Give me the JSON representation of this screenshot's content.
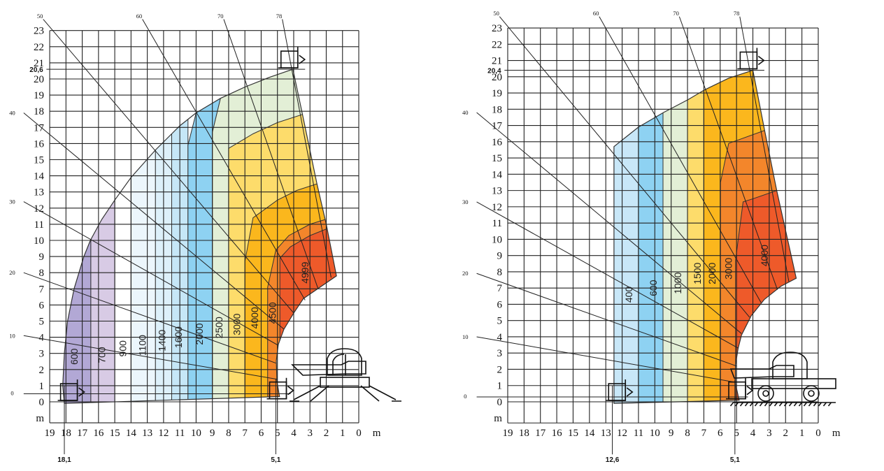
{
  "chart_data": [
    {
      "type": "area",
      "name": "load-chart-stabilized",
      "title": "",
      "xlabel": "m",
      "ylabel": "m",
      "xlim": [
        19,
        0
      ],
      "ylim": [
        0,
        23
      ],
      "x_ticks": [
        "19",
        "18",
        "17",
        "16",
        "15",
        "14",
        "13",
        "12",
        "11",
        "10",
        "9",
        "8",
        "7",
        "6",
        "5",
        "4",
        "3",
        "2",
        "1",
        "0"
      ],
      "y_ticks": [
        "0",
        "1",
        "2",
        "3",
        "4",
        "5",
        "6",
        "7",
        "8",
        "9",
        "10",
        "11",
        "12",
        "13",
        "14",
        "15",
        "16",
        "17",
        "18",
        "19",
        "20",
        "21",
        "22",
        "23"
      ],
      "grid": true,
      "max_height": {
        "value": 20.6,
        "label": "20,6"
      },
      "max_reach": {
        "value": 18.1,
        "label": "18,1"
      },
      "min_reach": {
        "value": 5.1,
        "label": "5,1"
      },
      "boom_angles": [
        "0",
        "10",
        "20",
        "30",
        "40",
        "50",
        "60",
        "70",
        "78"
      ],
      "envelope": [
        [
          18.1,
          -0.1
        ],
        [
          18.2,
          1
        ],
        [
          18.1,
          3
        ],
        [
          17.9,
          5
        ],
        [
          17.5,
          7
        ],
        [
          16.9,
          9
        ],
        [
          16.5,
          10
        ],
        [
          15.8,
          11.3
        ],
        [
          15,
          12.5
        ],
        [
          14,
          13.9
        ],
        [
          12.5,
          15.6
        ],
        [
          11,
          17.1
        ],
        [
          10,
          17.9
        ],
        [
          8.5,
          18.8
        ],
        [
          7,
          19.5
        ],
        [
          5.5,
          20.1
        ],
        [
          4.05,
          20.6
        ],
        [
          3.46,
          17.8
        ],
        [
          2.57,
          13.5
        ],
        [
          2,
          11
        ],
        [
          1.37,
          7.8
        ],
        [
          3.4,
          6.4
        ],
        [
          4.0,
          5.5
        ],
        [
          4.6,
          4.5
        ],
        [
          4.95,
          3.55
        ],
        [
          5.07,
          2.55
        ],
        [
          5.03,
          1.26
        ],
        [
          4.87,
          0.33
        ]
      ],
      "zones": [
        {
          "label": "600",
          "load_kg": 600,
          "color": "#b2a8d5",
          "boundary": [
            [
              19,
              -1
            ],
            [
              19,
              24
            ],
            [
              16.47,
              24
            ],
            [
              16.47,
              -1
            ]
          ]
        },
        {
          "label": "700",
          "load_kg": 700,
          "color": "#d8cbe5",
          "boundary": [
            [
              16.47,
              -1
            ],
            [
              16.47,
              24
            ],
            [
              15,
              24
            ],
            [
              15,
              -1
            ]
          ]
        },
        {
          "label": "900",
          "load_kg": 900,
          "color": "#ffffff",
          "boundary": [
            [
              15,
              -1
            ],
            [
              15,
              24
            ],
            [
              14,
              24
            ],
            [
              14,
              -1
            ]
          ]
        },
        {
          "label": "1100",
          "load_kg": 1100,
          "color": "#ecf6fc",
          "boundary": [
            [
              14,
              -1
            ],
            [
              14,
              24
            ],
            [
              12.5,
              24
            ],
            [
              12.5,
              -1
            ]
          ]
        },
        {
          "label": "1400",
          "load_kg": 1400,
          "color": "#ddf0fa",
          "boundary": [
            [
              12.5,
              -1
            ],
            [
              12.5,
              24
            ],
            [
              11.5,
              24
            ],
            [
              11.5,
              -1
            ]
          ]
        },
        {
          "label": "1600",
          "load_kg": 1600,
          "color": "#c6e7f7",
          "boundary": [
            [
              11.5,
              -1
            ],
            [
              11.5,
              24
            ],
            [
              10.5,
              24
            ],
            [
              10.5,
              -1
            ]
          ]
        },
        {
          "label": "2000",
          "load_kg": 2000,
          "color": "#8ed2f2",
          "boundary": [
            [
              10.5,
              -1
            ],
            [
              10.5,
              15.9
            ],
            [
              10,
              17.9
            ],
            [
              10,
              24
            ],
            [
              8.5,
              24
            ],
            [
              8.5,
              18.8
            ],
            [
              9,
              16.7
            ],
            [
              9,
              -1
            ]
          ]
        },
        {
          "label": "2500",
          "load_kg": 2500,
          "color": "#e3efd6",
          "boundary": [
            [
              9,
              -1
            ],
            [
              9,
              16.7
            ],
            [
              8.5,
              18.8
            ],
            [
              8.5,
              24
            ],
            [
              0,
              24
            ],
            [
              0,
              -1
            ]
          ]
        },
        {
          "label": "3000",
          "load_kg": 3000,
          "color": "#fddc6b",
          "boundary": [
            [
              8,
              -1
            ],
            [
              8,
              15.7
            ],
            [
              6.5,
              16.6
            ],
            [
              5,
              17.3
            ],
            [
              3.46,
              17.8
            ],
            [
              0,
              17.8
            ],
            [
              0,
              -1
            ]
          ]
        },
        {
          "label": "4000",
          "load_kg": 4000,
          "color": "#fbb71d",
          "boundary": [
            [
              7,
              -1
            ],
            [
              7,
              8.7
            ],
            [
              6.5,
              11.4
            ],
            [
              5,
              12.5
            ],
            [
              3.8,
              13.1
            ],
            [
              2.57,
              13.5
            ],
            [
              0,
              13.5
            ],
            [
              0,
              -1
            ]
          ]
        },
        {
          "label": "4500",
          "load_kg": 4500,
          "color": "#f3862b",
          "boundary": [
            [
              5.6,
              -1
            ],
            [
              5.6,
              7.1
            ],
            [
              5.1,
              9.4
            ],
            [
              4.3,
              10.3
            ],
            [
              3,
              11
            ],
            [
              2.05,
              11.3
            ],
            [
              0,
              11.3
            ],
            [
              0,
              -1
            ]
          ]
        },
        {
          "label": "4999",
          "load_kg": 4999,
          "color": "#ee5a2a",
          "boundary": [
            [
              4.85,
              -1
            ],
            [
              4.85,
              8.9
            ],
            [
              4.2,
              9.6
            ],
            [
              3,
              10.3
            ],
            [
              2,
              10.7
            ],
            [
              0,
              10.7
            ],
            [
              0,
              -1
            ]
          ]
        }
      ]
    },
    {
      "type": "area",
      "name": "load-chart-on-wheels",
      "title": "",
      "xlabel": "m",
      "ylabel": "m",
      "xlim": [
        19,
        0
      ],
      "ylim": [
        0,
        23
      ],
      "x_ticks": [
        "19",
        "18",
        "17",
        "16",
        "15",
        "14",
        "13",
        "12",
        "11",
        "10",
        "9",
        "8",
        "7",
        "6",
        "5",
        "4",
        "3",
        "2",
        "1",
        "0"
      ],
      "y_ticks": [
        "0",
        "1",
        "2",
        "3",
        "4",
        "5",
        "6",
        "7",
        "8",
        "9",
        "10",
        "11",
        "12",
        "13",
        "14",
        "15",
        "16",
        "17",
        "18",
        "19",
        "20",
        "21",
        "22",
        "23"
      ],
      "grid": true,
      "max_height": {
        "value": 20.4,
        "label": "20,4"
      },
      "max_reach": {
        "value": 12.6,
        "label": "12,6"
      },
      "min_reach": {
        "value": 5.1,
        "label": "5,1"
      },
      "boom_angles": [
        "0",
        "10",
        "20",
        "30",
        "40",
        "50",
        "60",
        "70",
        "78"
      ],
      "envelope": [
        [
          12.5,
          -0.1
        ],
        [
          12.5,
          15.7
        ],
        [
          11,
          16.9
        ],
        [
          9.47,
          17.8
        ],
        [
          7.95,
          18.6
        ],
        [
          6.94,
          19.2
        ],
        [
          5.5,
          19.9
        ],
        [
          4.0,
          20.4
        ],
        [
          3.28,
          16.7
        ],
        [
          2.54,
          13.0
        ],
        [
          1.35,
          7.6
        ],
        [
          2.3,
          7.1
        ],
        [
          3.3,
          6.3
        ],
        [
          4.1,
          5.3
        ],
        [
          4.7,
          4.1
        ],
        [
          4.9,
          3.3
        ],
        [
          5.06,
          2.3
        ],
        [
          5.06,
          1.1
        ],
        [
          4.84,
          0.1
        ]
      ],
      "zones": [
        {
          "label": "400",
          "load_kg": 400,
          "color": "#c8e7f8",
          "boundary": [
            [
              19,
              -1
            ],
            [
              19,
              24
            ],
            [
              11,
              24
            ],
            [
              11,
              -1
            ]
          ]
        },
        {
          "label": "600",
          "load_kg": 600,
          "color": "#8ed2f2",
          "boundary": [
            [
              11,
              -1
            ],
            [
              11,
              24
            ],
            [
              9.5,
              24
            ],
            [
              9.5,
              -1
            ]
          ]
        },
        {
          "label": "1000",
          "load_kg": 1000,
          "color": "#e3efd6",
          "boundary": [
            [
              9.5,
              -1
            ],
            [
              9.5,
              24
            ],
            [
              8,
              24
            ],
            [
              8,
              -1
            ]
          ]
        },
        {
          "label": "1500",
          "load_kg": 1500,
          "color": "#fddc6b",
          "boundary": [
            [
              8,
              -1
            ],
            [
              8,
              24
            ],
            [
              7,
              24
            ],
            [
              7,
              -1
            ]
          ]
        },
        {
          "label": "2000",
          "load_kg": 2000,
          "color": "#fbb71d",
          "boundary": [
            [
              7,
              -1
            ],
            [
              7,
              24
            ],
            [
              0,
              24
            ],
            [
              0,
              -1
            ]
          ]
        },
        {
          "label": "3000",
          "load_kg": 3000,
          "color": "#f3862b",
          "boundary": [
            [
              5.98,
              -1
            ],
            [
              5.98,
              13.5
            ],
            [
              5.48,
              15.9
            ],
            [
              3.28,
              16.7
            ],
            [
              0,
              16.7
            ],
            [
              0,
              -1
            ]
          ]
        },
        {
          "label": "4000",
          "load_kg": 4000,
          "color": "#ee5a2a",
          "boundary": [
            [
              5.06,
              -1
            ],
            [
              5.06,
              8.7
            ],
            [
              4.6,
              12.3
            ],
            [
              3.98,
              12.5
            ],
            [
              2.54,
              13.0
            ],
            [
              0,
              13.0
            ],
            [
              0,
              -1
            ]
          ]
        }
      ]
    }
  ]
}
